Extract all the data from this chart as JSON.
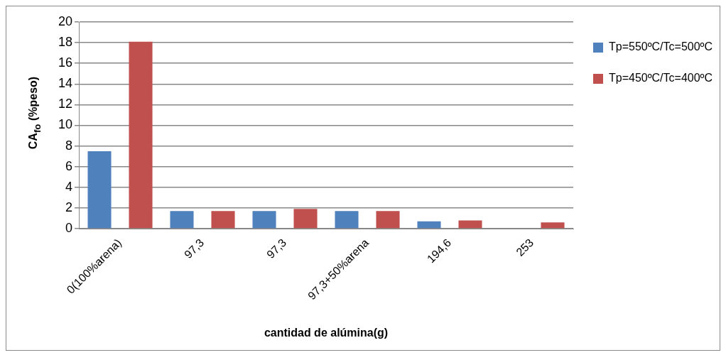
{
  "chart_data": {
    "type": "bar",
    "xlabel": "cantidad de alúmina(g)",
    "ylabel": "CA$_{fo}$ (%peso)",
    "categories": [
      "0(100%arena)",
      "97,3",
      "97,3",
      "97,3+50%arena",
      "194,6",
      "253"
    ],
    "series": [
      {
        "name": "Tp=550ºC/Tc=500ºC",
        "color": "#4f81bd",
        "values": [
          7.5,
          1.7,
          1.7,
          1.7,
          0.7,
          0
        ]
      },
      {
        "name": "Tp=450ºC/Tc=400ºC",
        "color": "#c0504d",
        "values": [
          18.1,
          1.7,
          1.9,
          1.7,
          0.8,
          0.6
        ]
      }
    ],
    "ylim": [
      0,
      20
    ],
    "yticks": [
      0,
      2,
      4,
      6,
      8,
      10,
      12,
      14,
      16,
      18,
      20
    ],
    "grid": "y",
    "legend": "right"
  }
}
